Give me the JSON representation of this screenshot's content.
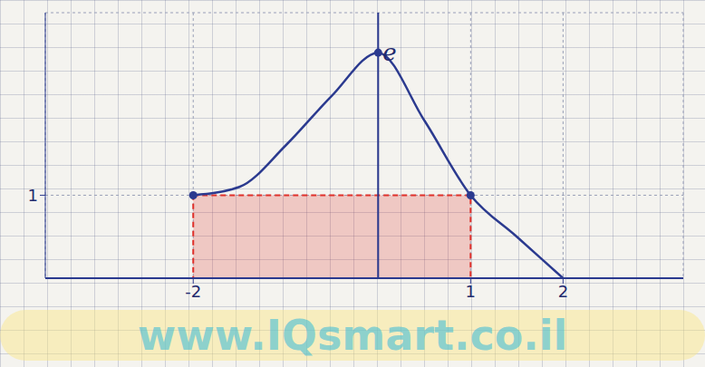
{
  "chart_data": {
    "type": "line",
    "x": [
      -2,
      -1.5,
      -1,
      -0.5,
      0,
      0.5,
      1,
      1.5,
      2
    ],
    "values": [
      1,
      1.1,
      1.6,
      2.2,
      2.718,
      1.9,
      1,
      0.5,
      0
    ],
    "color": "#2b3a8f",
    "xlim": [
      -3.6,
      3.3
    ],
    "ylim": [
      0,
      3.2
    ],
    "xticks": [
      -2,
      1,
      2
    ],
    "yticks": [
      1
    ],
    "grid": true,
    "marked_points": {
      "x": [
        -2,
        0,
        1
      ],
      "y": [
        1,
        2.718,
        1
      ]
    },
    "shaded_region": {
      "x": [
        -2,
        1
      ],
      "y": [
        0,
        1
      ],
      "color": "#e0302a"
    },
    "annotations": [
      {
        "text": "e",
        "x": 0,
        "y": 2.718
      }
    ],
    "watermark": "www.IQsmart.co.il"
  }
}
